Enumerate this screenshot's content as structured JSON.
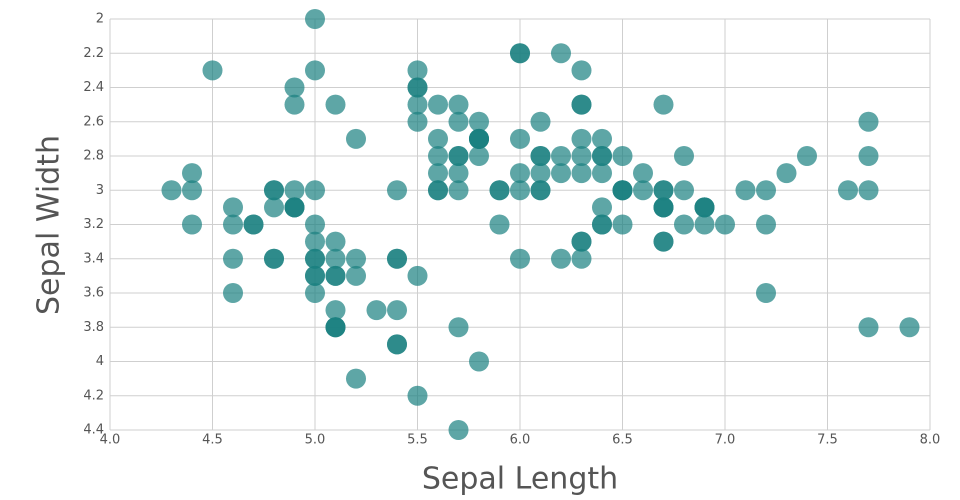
{
  "chart_data": {
    "type": "scatter",
    "x_label": "Sepal Length",
    "y_label": "Sepal Width",
    "color": "#1a8080",
    "grid": true,
    "xlim": [
      4,
      8
    ],
    "ylim": [
      4.4,
      2
    ],
    "xticks": [
      {
        "value": 4,
        "label": "4.0"
      },
      4.5,
      {
        "value": 5,
        "label": "5.0"
      },
      5.5,
      {
        "value": 6,
        "label": "6.0"
      },
      6.5,
      {
        "value": 7,
        "label": "7.0"
      },
      7.5,
      {
        "value": 8,
        "label": "8.0"
      }
    ],
    "yticks": [
      2,
      2.2,
      2.4,
      2.6,
      2.8,
      3,
      3.2,
      3.4,
      3.6,
      3.8,
      4,
      4.2,
      4.4
    ],
    "x": [
      5.1,
      4.9,
      4.7,
      4.6,
      5.0,
      5.4,
      4.6,
      5.0,
      4.4,
      4.9,
      5.4,
      4.8,
      4.8,
      4.3,
      5.8,
      5.7,
      5.4,
      5.1,
      5.7,
      5.1,
      5.4,
      5.1,
      4.6,
      5.1,
      4.8,
      5.0,
      5.0,
      5.2,
      5.2,
      4.7,
      4.8,
      5.4,
      5.2,
      5.5,
      4.9,
      5.0,
      5.5,
      4.9,
      4.4,
      5.1,
      5.0,
      4.5,
      4.4,
      5.0,
      5.1,
      4.8,
      5.1,
      4.6,
      5.3,
      5.0,
      7.0,
      6.4,
      6.9,
      5.5,
      6.5,
      5.7,
      6.3,
      4.9,
      6.6,
      5.2,
      5.0,
      5.9,
      6.0,
      6.1,
      5.6,
      6.7,
      5.6,
      5.8,
      6.2,
      5.6,
      5.9,
      6.1,
      6.3,
      6.1,
      6.4,
      6.6,
      6.8,
      6.7,
      6.0,
      5.7,
      5.5,
      5.5,
      5.8,
      6.0,
      5.4,
      6.0,
      6.7,
      6.3,
      5.6,
      5.5,
      5.5,
      6.1,
      5.8,
      5.0,
      5.6,
      5.7,
      5.7,
      6.2,
      5.1,
      5.7,
      6.3,
      5.8,
      7.1,
      6.3,
      6.5,
      7.6,
      4.9,
      7.3,
      6.7,
      7.2,
      6.5,
      6.4,
      6.8,
      5.7,
      5.8,
      6.4,
      6.5,
      7.7,
      7.7,
      6.0,
      6.9,
      5.6,
      7.7,
      6.3,
      6.7,
      7.2,
      6.2,
      6.1,
      6.4,
      7.2,
      7.4,
      7.9,
      6.4,
      6.3,
      6.1,
      7.7,
      6.3,
      6.4,
      6.0,
      6.9,
      6.7,
      6.9,
      5.8,
      6.8,
      6.7,
      6.7,
      6.3,
      6.5,
      6.2,
      5.9
    ],
    "values": [
      3.5,
      3.0,
      3.2,
      3.1,
      3.6,
      3.9,
      3.4,
      3.4,
      2.9,
      3.1,
      3.7,
      3.4,
      3.0,
      3.0,
      4.0,
      4.4,
      3.9,
      3.5,
      3.8,
      3.8,
      3.4,
      3.7,
      3.6,
      3.3,
      3.4,
      3.0,
      3.4,
      3.5,
      3.4,
      3.2,
      3.1,
      3.4,
      4.1,
      4.2,
      3.1,
      3.2,
      3.5,
      3.1,
      3.0,
      3.4,
      3.5,
      2.3,
      3.2,
      3.5,
      3.8,
      3.0,
      3.8,
      3.2,
      3.7,
      3.3,
      3.2,
      3.2,
      3.1,
      2.3,
      2.8,
      2.8,
      3.3,
      2.4,
      2.9,
      2.7,
      2.0,
      3.0,
      2.2,
      2.9,
      2.9,
      3.1,
      3.0,
      2.7,
      2.2,
      2.5,
      3.2,
      2.8,
      2.5,
      2.8,
      2.9,
      3.0,
      2.8,
      3.0,
      2.9,
      2.6,
      2.4,
      2.4,
      2.7,
      2.7,
      3.0,
      3.4,
      3.1,
      2.3,
      3.0,
      2.5,
      2.6,
      3.0,
      2.6,
      2.3,
      2.7,
      3.0,
      2.9,
      2.9,
      2.5,
      2.8,
      3.3,
      2.7,
      3.0,
      2.9,
      3.0,
      3.0,
      2.5,
      2.9,
      2.5,
      3.6,
      3.2,
      2.7,
      3.0,
      2.5,
      2.8,
      3.2,
      3.0,
      3.8,
      2.6,
      2.2,
      3.2,
      2.8,
      2.8,
      2.7,
      3.3,
      3.2,
      2.8,
      3.0,
      2.8,
      3.0,
      2.8,
      3.8,
      2.8,
      2.8,
      2.6,
      3.0,
      3.4,
      3.1,
      3.0,
      3.1,
      3.1,
      3.1,
      2.7,
      3.2,
      3.3,
      3.0,
      2.5,
      3.0,
      3.4,
      3.0
    ]
  }
}
